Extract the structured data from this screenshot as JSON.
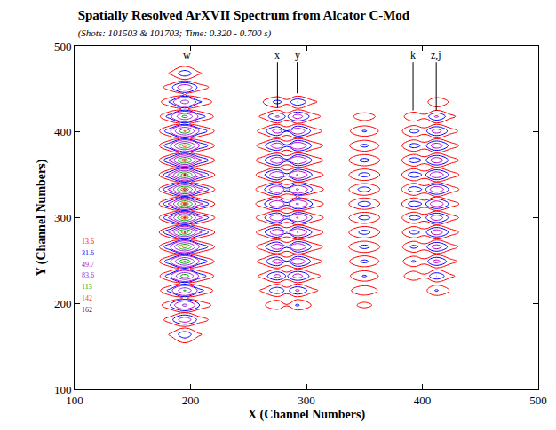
{
  "chart_data": {
    "type": "contour",
    "title": "Spatially Resolved ArXVII Spectrum from Alcator C-Mod",
    "subtitle": "(Shots: 101503 & 101703; Time: 0.320 - 0.700 s)",
    "x_label": "X (Channel Numbers)",
    "y_label": "Y (Channel Numbers)",
    "xlim": [
      100,
      500
    ],
    "ylim": [
      100,
      500
    ],
    "xticks": [
      100,
      200,
      300,
      400,
      500
    ],
    "yticks": [
      100,
      200,
      300,
      400,
      500
    ],
    "levels": [
      13.6,
      31.6,
      49.7,
      83.6,
      113,
      142,
      162
    ],
    "colors": [
      "#ff0000",
      "#0000ff",
      "#c000c0",
      "#8a2be2",
      "#00b000",
      "#ff4500",
      "#800000"
    ],
    "annotations": [
      {
        "text": "w",
        "x": 197,
        "y": 490
      },
      {
        "text": "x",
        "x": 275,
        "y": 428
      },
      {
        "text": "y",
        "x": 292,
        "y": 445
      },
      {
        "text": "k",
        "x": 392,
        "y": 425
      },
      {
        "text": "z,j",
        "x": 412,
        "y": 425
      }
    ],
    "x": [
      170,
      183,
      195,
      207,
      225,
      250,
      263,
      275,
      283,
      292,
      305,
      322,
      337,
      350,
      363,
      378,
      392,
      402,
      412,
      424,
      440
    ],
    "y": [
      150,
      164,
      172.5,
      181,
      189.5,
      198,
      206.5,
      215,
      223.5,
      232,
      240.5,
      249,
      257.5,
      266,
      274.5,
      283,
      291.5,
      300,
      308,
      316,
      324.5,
      333,
      341.5,
      350,
      358.5,
      367,
      375.5,
      384,
      392.5,
      401,
      409.5,
      418,
      426.5,
      435,
      443.5,
      452,
      460,
      468,
      480
    ],
    "z": [
      [
        0,
        0,
        0,
        0,
        0,
        0,
        0,
        0,
        0,
        0,
        0,
        0,
        0,
        0,
        0,
        0,
        0,
        0,
        0,
        0,
        0
      ],
      [
        0,
        16,
        45,
        16,
        0,
        0,
        0,
        0,
        0,
        0,
        0,
        0,
        0,
        0,
        0,
        0,
        0,
        0,
        0,
        0,
        0
      ],
      [
        0,
        0,
        9,
        0,
        0,
        0,
        0,
        0,
        0,
        0,
        0,
        0,
        0,
        0,
        0,
        0,
        0,
        0,
        0,
        0,
        0
      ],
      [
        0,
        25,
        70,
        25,
        0,
        0,
        0,
        0,
        0,
        0,
        0,
        0,
        0,
        0,
        0,
        0,
        0,
        0,
        0,
        0,
        0
      ],
      [
        0,
        0,
        12,
        0,
        0,
        0,
        0,
        2,
        0,
        3,
        0,
        0,
        0,
        2,
        0,
        0,
        0,
        0,
        0,
        0,
        0
      ],
      [
        0,
        33,
        95,
        33,
        0,
        0,
        11,
        30,
        15,
        35,
        12,
        0,
        7,
        20,
        7,
        0,
        0,
        0,
        0,
        0,
        0
      ],
      [
        0,
        0,
        16,
        0,
        0,
        0,
        0,
        6,
        0,
        7,
        0,
        0,
        0,
        4,
        0,
        0,
        0,
        0,
        3,
        0,
        0
      ],
      [
        0,
        42,
        120,
        42,
        0,
        0,
        18,
        50,
        24,
        55,
        19,
        0,
        11,
        30,
        11,
        0,
        0,
        8,
        35,
        12,
        0
      ],
      [
        0,
        0,
        20,
        0,
        0,
        0,
        0,
        8,
        0,
        9,
        0,
        0,
        0,
        5,
        0,
        0,
        2,
        0,
        6,
        0,
        0
      ],
      [
        0,
        49,
        140,
        49,
        0,
        0,
        21,
        60,
        28,
        65,
        23,
        0,
        12,
        35,
        12,
        0,
        30,
        18,
        50,
        18,
        0
      ],
      [
        0,
        0,
        22,
        0,
        0,
        0,
        0,
        9,
        0,
        11,
        0,
        0,
        0,
        5,
        0,
        0,
        5,
        0,
        8,
        0,
        0
      ],
      [
        0,
        53,
        150,
        53,
        0,
        0,
        23,
        65,
        32,
        75,
        26,
        0,
        13,
        38,
        13,
        0,
        35,
        21,
        60,
        21,
        0
      ],
      [
        0,
        0,
        23,
        0,
        0,
        0,
        0,
        10,
        0,
        12,
        0,
        0,
        0,
        6,
        0,
        0,
        5,
        0,
        9,
        0,
        0
      ],
      [
        0,
        56,
        160,
        56,
        0,
        0,
        25,
        70,
        34,
        80,
        28,
        0,
        14,
        40,
        14,
        0,
        38,
        23,
        65,
        23,
        0
      ],
      [
        0,
        0,
        25,
        0,
        0,
        0,
        0,
        11,
        0,
        12,
        0,
        0,
        0,
        6,
        0,
        0,
        6,
        0,
        10,
        0,
        0
      ],
      [
        0,
        59,
        168,
        59,
        0,
        0,
        26,
        75,
        36,
        85,
        30,
        0,
        15,
        42,
        15,
        0,
        40,
        25,
        70,
        25,
        0
      ],
      [
        0,
        0,
        26,
        0,
        0,
        0,
        0,
        11,
        0,
        13,
        0,
        0,
        0,
        6,
        0,
        0,
        6,
        0,
        11,
        0,
        0
      ],
      [
        0,
        60,
        172,
        60,
        0,
        0,
        27,
        78,
        37,
        88,
        31,
        0,
        15,
        42,
        15,
        0,
        42,
        26,
        72,
        25,
        0
      ],
      [
        0,
        0,
        26,
        0,
        0,
        0,
        0,
        12,
        0,
        13,
        0,
        0,
        0,
        6,
        0,
        0,
        7,
        0,
        11,
        0,
        0
      ],
      [
        0,
        61,
        175,
        61,
        0,
        0,
        28,
        80,
        38,
        90,
        32,
        0,
        15,
        44,
        15,
        0,
        45,
        27,
        75,
        26,
        0
      ],
      [
        0,
        0,
        26,
        0,
        0,
        0,
        0,
        12,
        0,
        14,
        0,
        0,
        0,
        7,
        0,
        0,
        7,
        0,
        11,
        0,
        0
      ],
      [
        0,
        61,
        175,
        61,
        0,
        0,
        28,
        80,
        38,
        90,
        32,
        0,
        15,
        44,
        15,
        0,
        45,
        27,
        75,
        26,
        0
      ],
      [
        0,
        0,
        26,
        0,
        0,
        0,
        0,
        12,
        0,
        13,
        0,
        0,
        0,
        6,
        0,
        0,
        7,
        0,
        11,
        0,
        0
      ],
      [
        0,
        60,
        172,
        60,
        0,
        0,
        27,
        78,
        37,
        88,
        31,
        0,
        15,
        42,
        15,
        0,
        45,
        27,
        75,
        26,
        0
      ],
      [
        0,
        0,
        26,
        0,
        0,
        0,
        0,
        12,
        0,
        13,
        0,
        0,
        0,
        6,
        0,
        0,
        7,
        0,
        11,
        0,
        0
      ],
      [
        0,
        59,
        168,
        59,
        0,
        0,
        27,
        76,
        36,
        86,
        30,
        0,
        14,
        40,
        14,
        0,
        44,
        26,
        72,
        25,
        0
      ],
      [
        0,
        0,
        25,
        0,
        0,
        0,
        0,
        11,
        0,
        13,
        0,
        0,
        0,
        6,
        0,
        0,
        6,
        0,
        11,
        0,
        0
      ],
      [
        0,
        56,
        160,
        56,
        0,
        0,
        25,
        72,
        35,
        82,
        29,
        0,
        13,
        38,
        13,
        0,
        42,
        25,
        70,
        25,
        0
      ],
      [
        0,
        0,
        23,
        0,
        0,
        0,
        0,
        10,
        0,
        12,
        0,
        0,
        0,
        5,
        0,
        0,
        6,
        0,
        10,
        0,
        0
      ],
      [
        0,
        53,
        150,
        53,
        0,
        0,
        23,
        65,
        32,
        75,
        26,
        0,
        12,
        35,
        12,
        0,
        40,
        24,
        65,
        23,
        0
      ],
      [
        0,
        0,
        21,
        0,
        0,
        0,
        0,
        9,
        0,
        11,
        0,
        0,
        0,
        5,
        0,
        0,
        5,
        0,
        9,
        0,
        0
      ],
      [
        0,
        46,
        130,
        46,
        0,
        0,
        19,
        55,
        27,
        65,
        23,
        0,
        9,
        25,
        9,
        0,
        30,
        19,
        55,
        19,
        0
      ],
      [
        0,
        0,
        18,
        0,
        0,
        0,
        0,
        7,
        0,
        9,
        0,
        0,
        0,
        2,
        0,
        0,
        2,
        0,
        6,
        0,
        0
      ],
      [
        0,
        37,
        105,
        37,
        0,
        0,
        14,
        40,
        20,
        50,
        18,
        0,
        0,
        0,
        0,
        0,
        0,
        7,
        30,
        11,
        0
      ],
      [
        0,
        0,
        14,
        0,
        0,
        0,
        0,
        3,
        0,
        4,
        0,
        0,
        0,
        0,
        0,
        0,
        0,
        0,
        2,
        0,
        0
      ],
      [
        0,
        26,
        75,
        26,
        0,
        0,
        0,
        0,
        0,
        0,
        0,
        0,
        0,
        0,
        0,
        0,
        0,
        0,
        0,
        0,
        0
      ],
      [
        0,
        0,
        9,
        0,
        0,
        0,
        0,
        0,
        0,
        0,
        0,
        0,
        0,
        0,
        0,
        0,
        0,
        0,
        0,
        0,
        0
      ],
      [
        0,
        16,
        45,
        16,
        0,
        0,
        0,
        0,
        0,
        0,
        0,
        0,
        0,
        0,
        0,
        0,
        0,
        0,
        0,
        0,
        0
      ],
      [
        0,
        0,
        0,
        0,
        0,
        0,
        0,
        0,
        0,
        0,
        0,
        0,
        0,
        0,
        0,
        0,
        0,
        0,
        0,
        0,
        0
      ]
    ]
  }
}
